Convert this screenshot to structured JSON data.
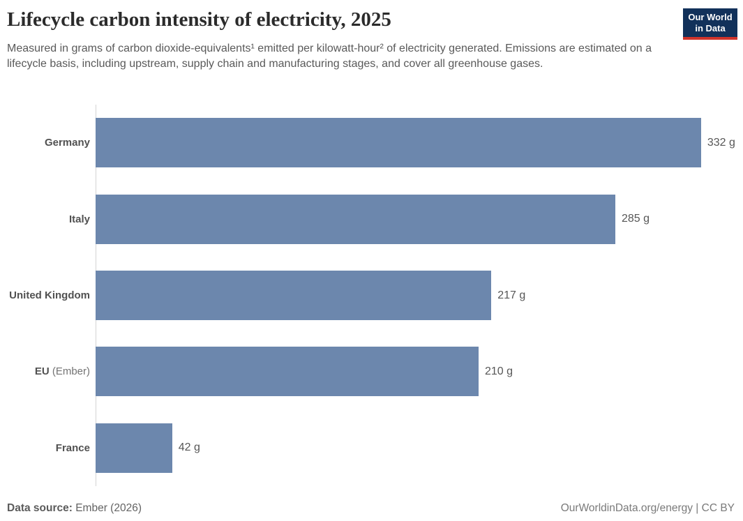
{
  "header": {
    "title": "Lifecycle carbon intensity of electricity, 2025",
    "subtitle": "Measured in grams of carbon dioxide-equivalents¹ emitted per kilowatt-hour² of electricity generated. Emissions are estimated on a lifecycle basis, including upstream, supply chain and manufacturing stages, and cover all greenhouse gases.",
    "logo": {
      "line1": "Our World",
      "line2": "in Data",
      "background_color": "#12315a",
      "accent_color": "#d1342b",
      "text_color": "#ffffff"
    }
  },
  "chart_data": {
    "type": "bar",
    "orientation": "horizontal",
    "title": "Lifecycle carbon intensity of electricity, 2025",
    "unit": "g",
    "xlim": [
      0,
      355
    ],
    "grid": false,
    "legend": "none",
    "bar_color": "#6c87ad",
    "categories": [
      "Germany",
      "Italy",
      "United Kingdom",
      "EU (Ember)",
      "France"
    ],
    "values": [
      332,
      285,
      217,
      210,
      42
    ],
    "bars": [
      {
        "label": "Germany",
        "suffix": "",
        "value": 332,
        "display": "332 g"
      },
      {
        "label": "Italy",
        "suffix": "",
        "value": 285,
        "display": "285 g"
      },
      {
        "label": "United Kingdom",
        "suffix": "",
        "value": 217,
        "display": "217 g"
      },
      {
        "label": "EU",
        "suffix": "(Ember)",
        "value": 210,
        "display": "210 g"
      },
      {
        "label": "France",
        "suffix": "",
        "value": 42,
        "display": "42 g"
      }
    ]
  },
  "footer": {
    "source_label": "Data source:",
    "source_value": "Ember (2026)",
    "link": "OurWorldinData.org/energy | CC BY"
  }
}
